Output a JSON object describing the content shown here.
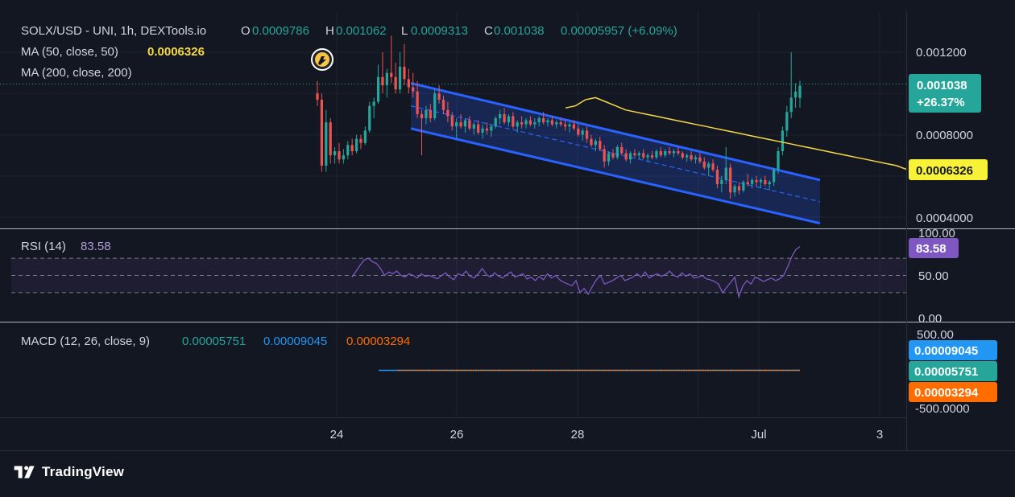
{
  "header": {
    "symbol": "SOLX/USD - UNI, 1h, DEXTools.io",
    "o_label": "O",
    "o_value": "0.0009786",
    "h_label": "H",
    "h_value": "0.001062",
    "l_label": "L",
    "l_value": "0.0009313",
    "c_label": "C",
    "c_value": "0.001038",
    "change": "0.00005957 (+6.09%)",
    "ma50_label": "MA (50, close, 50)",
    "ma50_value": "0.0006326",
    "ma200_label": "MA (200, close, 200)"
  },
  "price_tags": {
    "last_price": "0.001038",
    "last_change": "+26.37%",
    "ma50": "0.0006326"
  },
  "rsi": {
    "label": "RSI (14)",
    "value": "83.58",
    "tag": "83.58"
  },
  "macd": {
    "label": "MACD (12, 26, close, 9)",
    "v1": "0.00005751",
    "v2": "0.00009045",
    "v3": "0.00003294",
    "tag_blue": "0.00009045",
    "tag_green": "0.00005751",
    "tag_orange": "0.00003294"
  },
  "brand": {
    "name": "TradingView"
  },
  "colors": {
    "background": "#131722",
    "grid": "#1f2330",
    "up": "#26a69a",
    "down": "#ef5350",
    "ma50": "#f7d845",
    "channel": "#2962ff",
    "rsi": "#7e57c2",
    "macd": "#2196f3",
    "signal": "#ff6d00",
    "text": "#d1d4dc"
  },
  "chart_data": {
    "type": "candlestick",
    "title": "SOLX/USD - UNI, 1h, DEXTools.io",
    "x_ticks": [
      "24",
      "26",
      "28",
      "Jul",
      "3"
    ],
    "price_axis": {
      "ticks": [
        "0.001200",
        "0.0008000",
        "0.0004000"
      ],
      "range": [
        0.00035,
        0.0013
      ]
    },
    "ohlc": {
      "open": 0.0009786,
      "high": 0.001062,
      "low": 0.0009313,
      "close": 0.001038,
      "change": 5.957e-05,
      "change_pct": 6.09
    },
    "candles": [
      {
        "o": 0.001,
        "h": 0.00106,
        "l": 0.00094,
        "c": 0.00097
      },
      {
        "o": 0.00097,
        "h": 0.001,
        "l": 0.00062,
        "c": 0.00065
      },
      {
        "o": 0.00065,
        "h": 0.00092,
        "l": 0.00062,
        "c": 0.00086
      },
      {
        "o": 0.00086,
        "h": 0.00088,
        "l": 0.00066,
        "c": 0.0007
      },
      {
        "o": 0.0007,
        "h": 0.00074,
        "l": 0.00066,
        "c": 0.00072
      },
      {
        "o": 0.00072,
        "h": 0.00076,
        "l": 0.00066,
        "c": 0.00068
      },
      {
        "o": 0.00068,
        "h": 0.00073,
        "l": 0.00066,
        "c": 0.0007
      },
      {
        "o": 0.0007,
        "h": 0.00077,
        "l": 0.00068,
        "c": 0.00075
      },
      {
        "o": 0.00075,
        "h": 0.00078,
        "l": 0.0007,
        "c": 0.00072
      },
      {
        "o": 0.00072,
        "h": 0.0008,
        "l": 0.00071,
        "c": 0.00078
      },
      {
        "o": 0.00078,
        "h": 0.0008,
        "l": 0.00073,
        "c": 0.00076
      },
      {
        "o": 0.00076,
        "h": 0.00084,
        "l": 0.00075,
        "c": 0.00082
      },
      {
        "o": 0.00082,
        "h": 0.00096,
        "l": 0.00081,
        "c": 0.00094
      },
      {
        "o": 0.00094,
        "h": 0.00098,
        "l": 0.00088,
        "c": 0.00096
      },
      {
        "o": 0.00096,
        "h": 0.00114,
        "l": 0.00095,
        "c": 0.00108
      },
      {
        "o": 0.00108,
        "h": 0.0012,
        "l": 0.001,
        "c": 0.00104
      },
      {
        "o": 0.00104,
        "h": 0.00112,
        "l": 0.00098,
        "c": 0.0011
      },
      {
        "o": 0.0011,
        "h": 0.00128,
        "l": 0.00105,
        "c": 0.00108
      },
      {
        "o": 0.00108,
        "h": 0.00115,
        "l": 0.001,
        "c": 0.00102
      },
      {
        "o": 0.00102,
        "h": 0.0012,
        "l": 0.001,
        "c": 0.00113
      },
      {
        "o": 0.00113,
        "h": 0.00124,
        "l": 0.00104,
        "c": 0.00107
      },
      {
        "o": 0.00107,
        "h": 0.00112,
        "l": 0.001,
        "c": 0.00103
      },
      {
        "o": 0.00103,
        "h": 0.0011,
        "l": 0.00098,
        "c": 0.00101
      },
      {
        "o": 0.00101,
        "h": 0.00106,
        "l": 0.00088,
        "c": 0.0009
      },
      {
        "o": 0.0009,
        "h": 0.00092,
        "l": 0.0007,
        "c": 0.00088
      },
      {
        "o": 0.00088,
        "h": 0.00094,
        "l": 0.00085,
        "c": 0.00092
      },
      {
        "o": 0.00092,
        "h": 0.00095,
        "l": 0.00086,
        "c": 0.00088
      },
      {
        "o": 0.00088,
        "h": 0.00102,
        "l": 0.00087,
        "c": 0.001
      },
      {
        "o": 0.001,
        "h": 0.00104,
        "l": 0.00095,
        "c": 0.00097
      },
      {
        "o": 0.00097,
        "h": 0.00099,
        "l": 0.0009,
        "c": 0.00092
      },
      {
        "o": 0.00092,
        "h": 0.00096,
        "l": 0.00086,
        "c": 0.00089
      },
      {
        "o": 0.00089,
        "h": 0.00091,
        "l": 0.00082,
        "c": 0.00084
      },
      {
        "o": 0.00084,
        "h": 0.00088,
        "l": 0.00078,
        "c": 0.00086
      },
      {
        "o": 0.00086,
        "h": 0.0009,
        "l": 0.00083,
        "c": 0.00084
      },
      {
        "o": 0.00084,
        "h": 0.00088,
        "l": 0.00081,
        "c": 0.00087
      },
      {
        "o": 0.00087,
        "h": 0.00089,
        "l": 0.00082,
        "c": 0.00083
      },
      {
        "o": 0.00083,
        "h": 0.00086,
        "l": 0.0008,
        "c": 0.00085
      },
      {
        "o": 0.00085,
        "h": 0.00087,
        "l": 0.0008,
        "c": 0.00081
      },
      {
        "o": 0.00081,
        "h": 0.00085,
        "l": 0.00078,
        "c": 0.00083
      },
      {
        "o": 0.00083,
        "h": 0.00086,
        "l": 0.0008,
        "c": 0.00082
      },
      {
        "o": 0.00082,
        "h": 0.00085,
        "l": 0.00079,
        "c": 0.00084
      },
      {
        "o": 0.00084,
        "h": 0.00089,
        "l": 0.00083,
        "c": 0.00088
      },
      {
        "o": 0.00088,
        "h": 0.00092,
        "l": 0.00085,
        "c": 0.0009
      },
      {
        "o": 0.0009,
        "h": 0.00093,
        "l": 0.00085,
        "c": 0.00086
      },
      {
        "o": 0.00086,
        "h": 0.0009,
        "l": 0.00084,
        "c": 0.00089
      },
      {
        "o": 0.00089,
        "h": 0.00091,
        "l": 0.00083,
        "c": 0.00084
      },
      {
        "o": 0.00084,
        "h": 0.00087,
        "l": 0.00081,
        "c": 0.00086
      },
      {
        "o": 0.00086,
        "h": 0.00089,
        "l": 0.00083,
        "c": 0.00085
      },
      {
        "o": 0.00085,
        "h": 0.00088,
        "l": 0.00083,
        "c": 0.00087
      },
      {
        "o": 0.00087,
        "h": 0.00089,
        "l": 0.00084,
        "c": 0.00085
      },
      {
        "o": 0.00085,
        "h": 0.00088,
        "l": 0.00083,
        "c": 0.00086
      },
      {
        "o": 0.00086,
        "h": 0.00089,
        "l": 0.00084,
        "c": 0.00088
      },
      {
        "o": 0.00088,
        "h": 0.00091,
        "l": 0.00085,
        "c": 0.00086
      },
      {
        "o": 0.00086,
        "h": 0.00088,
        "l": 0.00084,
        "c": 0.00087
      },
      {
        "o": 0.00087,
        "h": 0.00089,
        "l": 0.00084,
        "c": 0.00085
      },
      {
        "o": 0.00085,
        "h": 0.00087,
        "l": 0.00083,
        "c": 0.00086
      },
      {
        "o": 0.00086,
        "h": 0.00088,
        "l": 0.00084,
        "c": 0.00085
      },
      {
        "o": 0.00085,
        "h": 0.00087,
        "l": 0.00082,
        "c": 0.00084
      },
      {
        "o": 0.00084,
        "h": 0.00086,
        "l": 0.00081,
        "c": 0.00085
      },
      {
        "o": 0.00085,
        "h": 0.00087,
        "l": 0.00082,
        "c": 0.00083
      },
      {
        "o": 0.00083,
        "h": 0.00085,
        "l": 0.00079,
        "c": 0.0008
      },
      {
        "o": 0.0008,
        "h": 0.00083,
        "l": 0.00077,
        "c": 0.00082
      },
      {
        "o": 0.00082,
        "h": 0.00084,
        "l": 0.00076,
        "c": 0.00078
      },
      {
        "o": 0.00078,
        "h": 0.0008,
        "l": 0.00074,
        "c": 0.00075
      },
      {
        "o": 0.00075,
        "h": 0.00078,
        "l": 0.00072,
        "c": 0.00077
      },
      {
        "o": 0.00077,
        "h": 0.00079,
        "l": 0.00072,
        "c": 0.00073
      },
      {
        "o": 0.00073,
        "h": 0.00075,
        "l": 0.00064,
        "c": 0.00067
      },
      {
        "o": 0.00067,
        "h": 0.00072,
        "l": 0.00065,
        "c": 0.00071
      },
      {
        "o": 0.00071,
        "h": 0.00073,
        "l": 0.00068,
        "c": 0.00069
      },
      {
        "o": 0.00069,
        "h": 0.00075,
        "l": 0.00068,
        "c": 0.00074
      },
      {
        "o": 0.00074,
        "h": 0.00076,
        "l": 0.0007,
        "c": 0.00071
      },
      {
        "o": 0.00071,
        "h": 0.00073,
        "l": 0.00067,
        "c": 0.00068
      },
      {
        "o": 0.00068,
        "h": 0.00072,
        "l": 0.00066,
        "c": 0.00071
      },
      {
        "o": 0.00071,
        "h": 0.00073,
        "l": 0.00069,
        "c": 0.0007
      },
      {
        "o": 0.0007,
        "h": 0.00072,
        "l": 0.00068,
        "c": 0.00071
      },
      {
        "o": 0.00071,
        "h": 0.00073,
        "l": 0.00068,
        "c": 0.00069
      },
      {
        "o": 0.00069,
        "h": 0.00071,
        "l": 0.00067,
        "c": 0.0007
      },
      {
        "o": 0.0007,
        "h": 0.00072,
        "l": 0.00068,
        "c": 0.00069
      },
      {
        "o": 0.00069,
        "h": 0.00073,
        "l": 0.00068,
        "c": 0.00072
      },
      {
        "o": 0.00072,
        "h": 0.00074,
        "l": 0.00069,
        "c": 0.0007
      },
      {
        "o": 0.0007,
        "h": 0.00073,
        "l": 0.00069,
        "c": 0.00072
      },
      {
        "o": 0.00072,
        "h": 0.00074,
        "l": 0.0007,
        "c": 0.00071
      },
      {
        "o": 0.00071,
        "h": 0.00073,
        "l": 0.00069,
        "c": 0.00072
      },
      {
        "o": 0.00072,
        "h": 0.00074,
        "l": 0.0007,
        "c": 0.00071
      },
      {
        "o": 0.00071,
        "h": 0.00072,
        "l": 0.00068,
        "c": 0.00069
      },
      {
        "o": 0.00069,
        "h": 0.00071,
        "l": 0.00067,
        "c": 0.0007
      },
      {
        "o": 0.0007,
        "h": 0.00072,
        "l": 0.00067,
        "c": 0.00068
      },
      {
        "o": 0.00068,
        "h": 0.0007,
        "l": 0.00066,
        "c": 0.00069
      },
      {
        "o": 0.00069,
        "h": 0.00071,
        "l": 0.00066,
        "c": 0.00067
      },
      {
        "o": 0.00067,
        "h": 0.00069,
        "l": 0.00063,
        "c": 0.00064
      },
      {
        "o": 0.00064,
        "h": 0.00067,
        "l": 0.0006,
        "c": 0.00066
      },
      {
        "o": 0.00066,
        "h": 0.00068,
        "l": 0.00062,
        "c": 0.00063
      },
      {
        "o": 0.00063,
        "h": 0.00065,
        "l": 0.00054,
        "c": 0.00056
      },
      {
        "o": 0.00056,
        "h": 0.0006,
        "l": 0.00052,
        "c": 0.00058
      },
      {
        "o": 0.00058,
        "h": 0.00074,
        "l": 0.00056,
        "c": 0.00064
      },
      {
        "o": 0.00064,
        "h": 0.00066,
        "l": 0.00049,
        "c": 0.00052
      },
      {
        "o": 0.00052,
        "h": 0.00056,
        "l": 0.0005,
        "c": 0.00055
      },
      {
        "o": 0.00055,
        "h": 0.00057,
        "l": 0.00051,
        "c": 0.00053
      },
      {
        "o": 0.00053,
        "h": 0.00058,
        "l": 0.00052,
        "c": 0.00057
      },
      {
        "o": 0.00057,
        "h": 0.00061,
        "l": 0.00055,
        "c": 0.00056
      },
      {
        "o": 0.00056,
        "h": 0.00059,
        "l": 0.00054,
        "c": 0.00058
      },
      {
        "o": 0.00058,
        "h": 0.0006,
        "l": 0.00055,
        "c": 0.00057
      },
      {
        "o": 0.00057,
        "h": 0.00059,
        "l": 0.00054,
        "c": 0.00058
      },
      {
        "o": 0.00058,
        "h": 0.0006,
        "l": 0.00055,
        "c": 0.00056
      },
      {
        "o": 0.00056,
        "h": 0.00058,
        "l": 0.00053,
        "c": 0.00057
      },
      {
        "o": 0.00057,
        "h": 0.00064,
        "l": 0.00055,
        "c": 0.00063
      },
      {
        "o": 0.00063,
        "h": 0.00074,
        "l": 0.00061,
        "c": 0.00072
      },
      {
        "o": 0.00072,
        "h": 0.00084,
        "l": 0.0007,
        "c": 0.00082
      },
      {
        "o": 0.00082,
        "h": 0.00094,
        "l": 0.00079,
        "c": 0.00091
      },
      {
        "o": 0.00091,
        "h": 0.0012,
        "l": 0.00088,
        "c": 0.00098
      },
      {
        "o": 0.00098,
        "h": 0.00105,
        "l": 0.00093,
        "c": 0.00101
      },
      {
        "o": 0.0009786,
        "h": 0.001062,
        "l": 0.0009313,
        "c": 0.001038
      }
    ],
    "ma50": [
      0.00093,
      0.00094,
      0.00097,
      0.00098,
      0.00096,
      0.00094,
      0.00092,
      0.00091,
      0.0009,
      0.00089,
      0.00088,
      0.00087,
      0.00086,
      0.00085,
      0.00084,
      0.00083,
      0.00082,
      0.00081,
      0.0008,
      0.00079,
      0.00078,
      0.00077,
      0.00076,
      0.00075,
      0.00074,
      0.00073,
      0.00072,
      0.00071,
      0.0007,
      0.00069,
      0.00068,
      0.00067,
      0.00066,
      0.00065,
      0.0006326
    ],
    "channel": {
      "upper": [
        0.00105,
        0.00058
      ],
      "lower": [
        0.00083,
        0.00037
      ],
      "mid": [
        0.00094,
        0.000475
      ]
    },
    "rsi": {
      "range": [
        0,
        100
      ],
      "ticks": [
        "100.00",
        "50.00",
        "0.00"
      ],
      "bands": [
        70,
        50,
        30
      ],
      "values": [
        48,
        55,
        62,
        68,
        70,
        66,
        64,
        58,
        50,
        54,
        52,
        55,
        50,
        48,
        52,
        50,
        47,
        52,
        49,
        50,
        48,
        46,
        50,
        53,
        48,
        45,
        52,
        50,
        55,
        49,
        47,
        52,
        58,
        51,
        48,
        53,
        49,
        47,
        51,
        54,
        48,
        50,
        52,
        46,
        48,
        44,
        49,
        45,
        52,
        47,
        50,
        45,
        42,
        40,
        38,
        44,
        30,
        35,
        28,
        37,
        45,
        50,
        40,
        42,
        44,
        47,
        50,
        44,
        46,
        48,
        52,
        48,
        54,
        47,
        50,
        52,
        49,
        51,
        55,
        50,
        48,
        53,
        49,
        52,
        47,
        48,
        50,
        46,
        45,
        43,
        40,
        30,
        36,
        42,
        48,
        25,
        38,
        44,
        40,
        48,
        46,
        43,
        45,
        47,
        44,
        46,
        50,
        60,
        72,
        80,
        83.58
      ]
    },
    "macd": {
      "range": [
        -500,
        500
      ],
      "ticks": [
        "500.00",
        "-500.0000"
      ],
      "macd": 5.751e-05,
      "signal": 9.045e-05,
      "histogram": 3.294e-05
    }
  }
}
